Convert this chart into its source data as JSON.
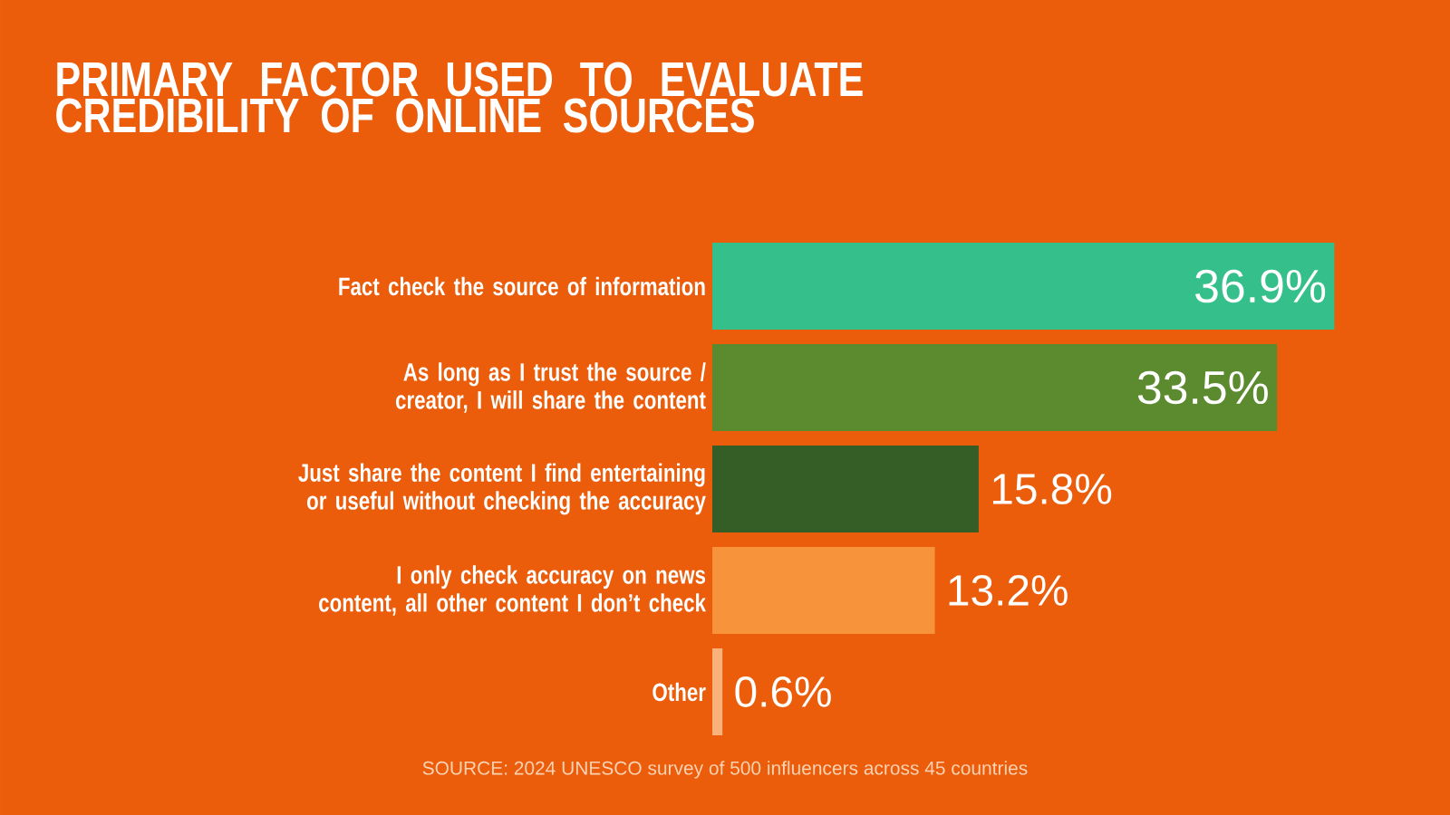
{
  "chart_data": {
    "type": "bar",
    "orientation": "horizontal",
    "title": "PRIMARY FACTOR USED TO EVALUATE CREDIBILITY OF ONLINE SOURCES",
    "categories": [
      "Fact check the source of information",
      "As long as I trust the source / creator, I will share the content",
      "Just share the content I find entertaining or useful without checking the accuracy",
      "I only check accuracy on news content, all other content I don’t check",
      "Other"
    ],
    "values": [
      36.9,
      33.5,
      15.8,
      13.2,
      0.6
    ],
    "value_labels": [
      "36.9%",
      "33.5%",
      "15.8%",
      "13.2%",
      "0.6%"
    ],
    "colors": [
      "#35bf8b",
      "#5b8a2f",
      "#345e26",
      "#f7933b",
      "#f9b27c"
    ],
    "annotations": [
      "SOURCE: 2024 UNESCO survey of 500 influencers across 45 countries"
    ]
  }
}
